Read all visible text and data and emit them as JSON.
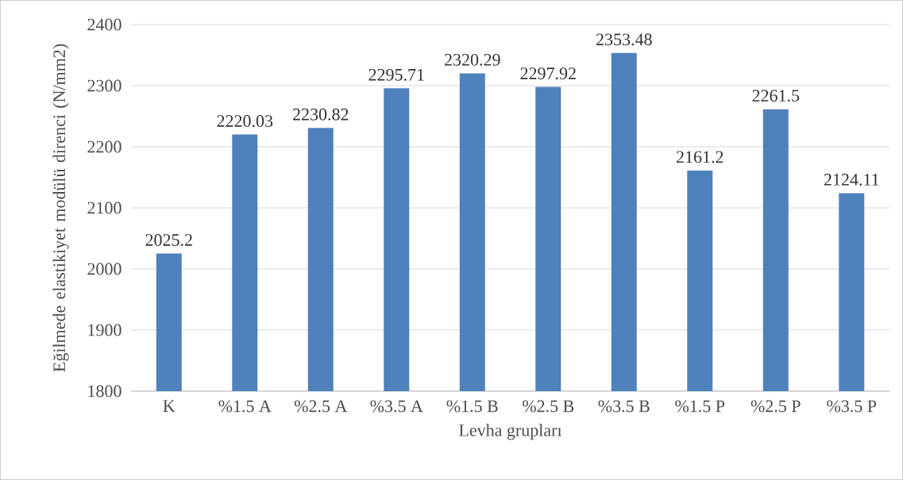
{
  "chart_data": {
    "type": "bar",
    "xlabel": "Levha grupları",
    "ylabel": "Eğilmede elastikiyet modülü direnci (N/mm2)",
    "categories": [
      "K",
      "%1.5 A",
      "%2.5 A",
      "%3.5 A",
      "%1.5 B",
      "%2.5 B",
      "%3.5 B",
      "%1.5 P",
      "%2.5 P",
      "%3.5 P"
    ],
    "values": [
      2025.2,
      2220.03,
      2230.82,
      2295.71,
      2320.29,
      2297.92,
      2353.48,
      2161.2,
      2261.5,
      2124.11
    ],
    "color": "#4f81bd",
    "ylim": [
      1800,
      2400
    ],
    "yticks": [
      1800,
      1900,
      2000,
      2100,
      2200,
      2300,
      2400
    ],
    "grid": "y",
    "data_labels": true
  }
}
